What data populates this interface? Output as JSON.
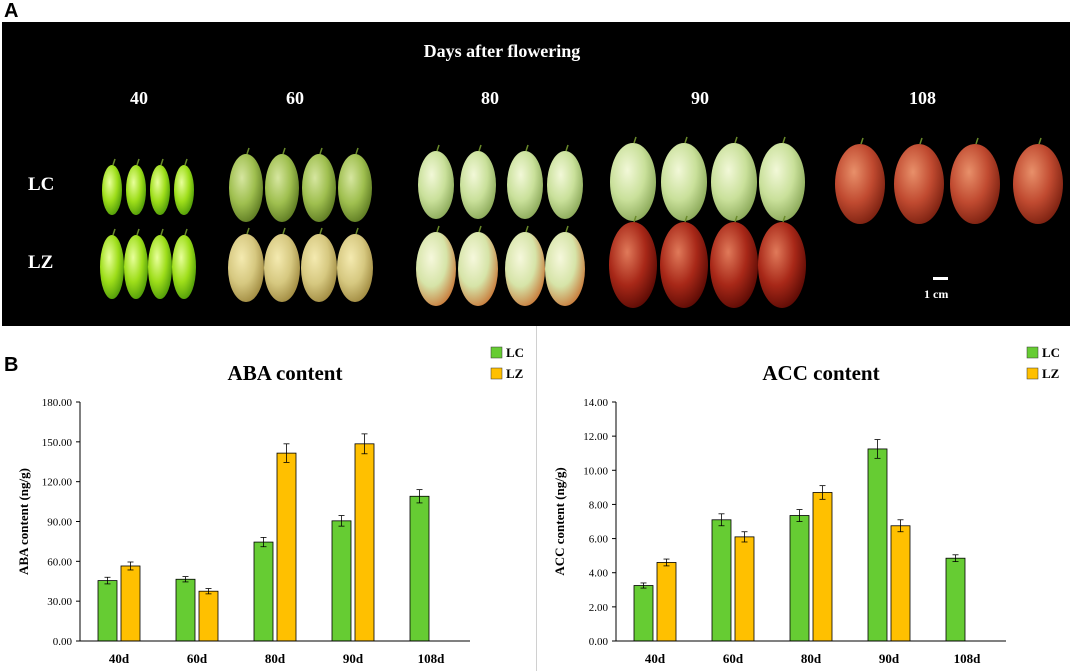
{
  "panel_a": {
    "letter": "A",
    "heading": "Days after flowering",
    "days": [
      "40",
      "60",
      "80",
      "90",
      "108"
    ],
    "rows": [
      "LC",
      "LZ"
    ],
    "scale_label": "1 cm"
  },
  "panel_b": {
    "letter": "B"
  },
  "colors": {
    "LC": "#66cc33",
    "LZ": "#ffc000"
  },
  "chart_data": [
    {
      "type": "bar",
      "title": "ABA content",
      "ylabel": "ABA content (ng/g)",
      "xlabel": "",
      "categories": [
        "40d",
        "60d",
        "80d",
        "90d",
        "108d"
      ],
      "yticks": [
        "0.00",
        "30.00",
        "60.00",
        "90.00",
        "120.00",
        "150.00",
        "180.00"
      ],
      "ylim": [
        0,
        180
      ],
      "legend_position": "top-right",
      "series": [
        {
          "name": "LC",
          "values": [
            45.5,
            46.5,
            74.5,
            90.5,
            109.0
          ],
          "errors": [
            2.5,
            2.0,
            3.5,
            4.0,
            5.0
          ]
        },
        {
          "name": "LZ",
          "values": [
            56.5,
            37.5,
            141.5,
            148.5,
            null
          ],
          "errors": [
            3.0,
            2.0,
            7.0,
            7.5,
            null
          ]
        }
      ]
    },
    {
      "type": "bar",
      "title": "ACC content",
      "ylabel": "ACC content (ng/g)",
      "xlabel": "",
      "categories": [
        "40d",
        "60d",
        "80d",
        "90d",
        "108d"
      ],
      "yticks": [
        "0.00",
        "2.00",
        "4.00",
        "6.00",
        "8.00",
        "10.00",
        "12.00",
        "14.00"
      ],
      "ylim": [
        0,
        14
      ],
      "legend_position": "top-right",
      "series": [
        {
          "name": "LC",
          "values": [
            3.25,
            7.1,
            7.35,
            11.25,
            4.85
          ],
          "errors": [
            0.15,
            0.35,
            0.35,
            0.55,
            0.2
          ]
        },
        {
          "name": "LZ",
          "values": [
            4.6,
            6.1,
            8.7,
            6.75,
            null
          ],
          "errors": [
            0.2,
            0.3,
            0.4,
            0.35,
            null
          ]
        }
      ]
    }
  ]
}
